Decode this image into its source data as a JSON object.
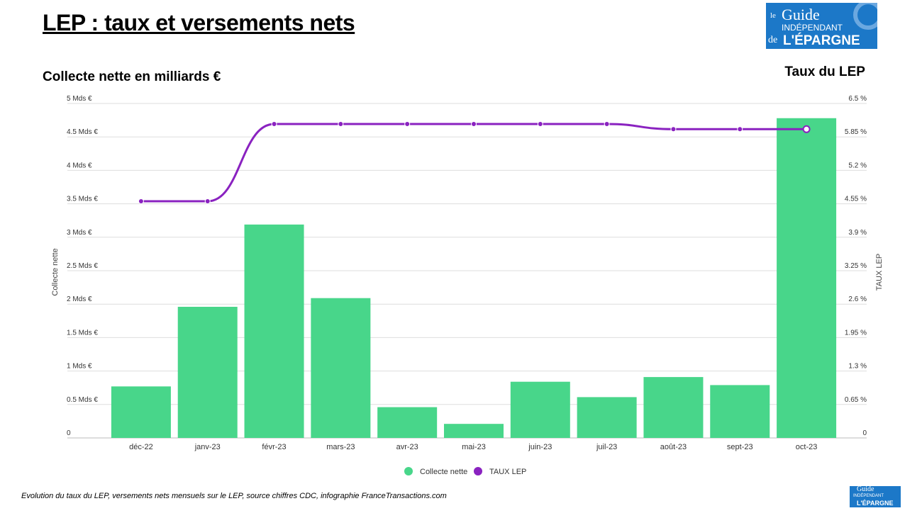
{
  "header": {
    "title": "LEP : taux et versements nets",
    "left_title": "Collecte nette en milliards €",
    "right_title": "Taux du LEP",
    "caption": "Evolution du taux du LEP, versements nets mensuels sur le LEP, source chiffres CDC, infographie FranceTransactions.com"
  },
  "logo": {
    "line1": "le",
    "line2": "Guide",
    "line3": "INDÉPENDANT",
    "line4_prefix": "de",
    "line4": "L'ÉPARGNE",
    "site": "FranceTransactions.com",
    "color": "#1c78c8"
  },
  "chart_data": {
    "type": "bar+line",
    "categories": [
      "déc-22",
      "janv-23",
      "févr-23",
      "mars-23",
      "avr-23",
      "mai-23",
      "juin-23",
      "juil-23",
      "août-23",
      "sept-23",
      "oct-23"
    ],
    "series": [
      {
        "name": "Collecte nette",
        "type": "bar",
        "axis": "left",
        "color": "#48d68a",
        "values": [
          0.77,
          1.96,
          3.19,
          2.09,
          0.46,
          0.21,
          0.84,
          0.61,
          0.91,
          0.79,
          4.78
        ]
      },
      {
        "name": "TAUX LEP",
        "type": "line",
        "axis": "right",
        "color": "#8a22c0",
        "values": [
          4.6,
          4.6,
          6.1,
          6.1,
          6.1,
          6.1,
          6.1,
          6.1,
          6.0,
          6.0,
          6.0
        ]
      }
    ],
    "y_left": {
      "label": "Collecte nette",
      "range": [
        0,
        5
      ],
      "ticks": [
        "0",
        "0.5 Mds €",
        "1 Mds €",
        "1.5 Mds €",
        "2 Mds €",
        "2.5 Mds €",
        "3 Mds €",
        "3.5 Mds €",
        "4 Mds €",
        "4.5 Mds €",
        "5 Mds €"
      ]
    },
    "y_right": {
      "label": "TAUX LEP",
      "range": [
        0,
        6.5
      ],
      "ticks": [
        "0",
        "0.65 %",
        "1.3 %",
        "1.95 %",
        "2.6 %",
        "3.25 %",
        "3.9 %",
        "4.55 %",
        "5.2 %",
        "5.85 %",
        "6.5 %"
      ]
    },
    "grid": true,
    "legend": "bottom"
  }
}
